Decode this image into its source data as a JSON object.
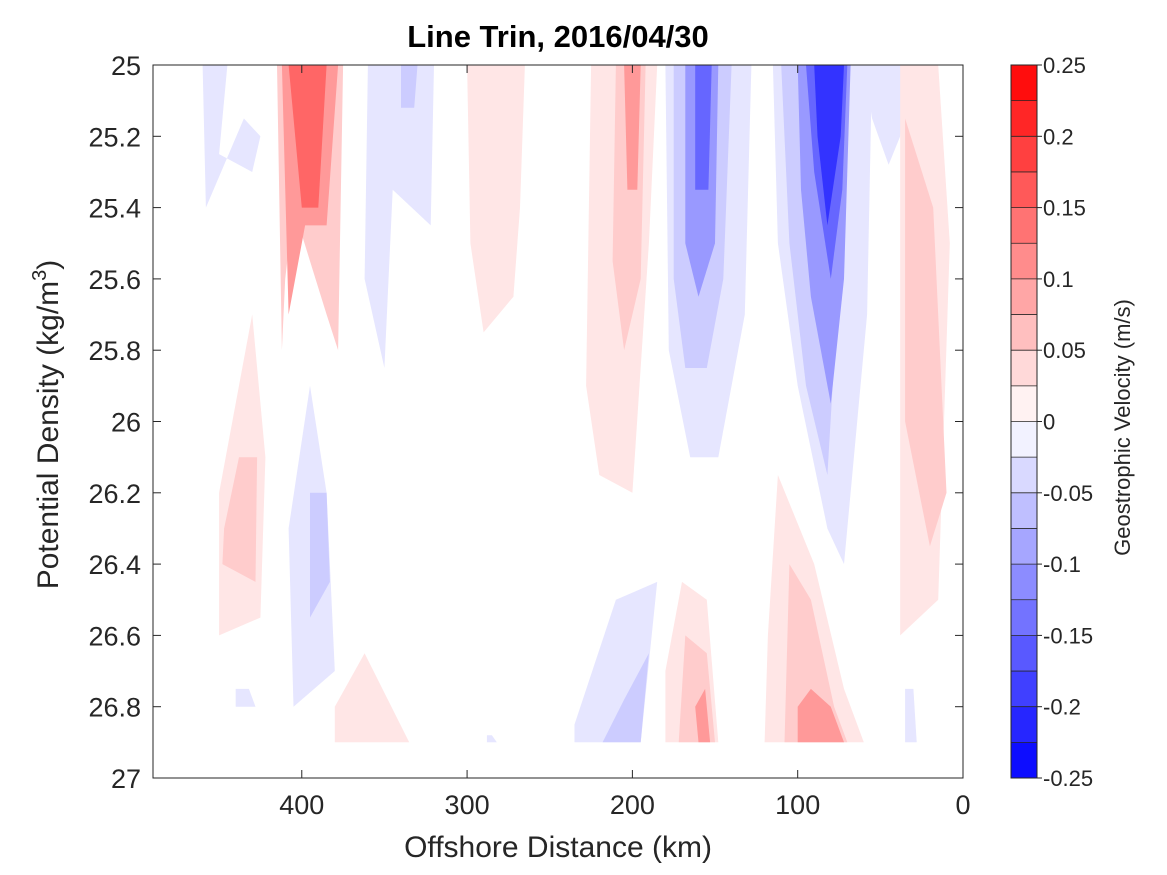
{
  "chart_data": {
    "type": "contour",
    "title": "Line Trin, 2016/04/30",
    "xlabel": "Offshore Distance (km)",
    "ylabel_main": "Potential Density (kg/m",
    "ylabel_sup": "3",
    "ylabel_tail": ")",
    "x_reversed": true,
    "y_reversed": true,
    "xlim": [
      490,
      0
    ],
    "ylim": [
      25,
      27
    ],
    "xticks": [
      400,
      300,
      200,
      100,
      0
    ],
    "yticks": [
      25,
      25.2,
      25.4,
      25.6,
      25.8,
      26,
      26.2,
      26.4,
      26.6,
      26.8,
      27
    ],
    "ytick_labels": [
      "25",
      "25.2",
      "25.4",
      "25.6",
      "25.8",
      "26",
      "26.2",
      "26.4",
      "26.6",
      "26.8",
      "27"
    ],
    "colorbar": {
      "label": "Geostrophic Velocity (m/s)",
      "range": [
        -0.25,
        0.25
      ],
      "levels": [
        -0.25,
        -0.225,
        -0.2,
        -0.175,
        -0.15,
        -0.125,
        -0.1,
        -0.075,
        -0.05,
        -0.025,
        0,
        0.025,
        0.05,
        0.075,
        0.1,
        0.125,
        0.15,
        0.175,
        0.2,
        0.225,
        0.25
      ],
      "ticks": [
        0.25,
        0.2,
        0.15,
        0.1,
        0.05,
        0,
        -0.05,
        -0.1,
        -0.15,
        -0.2,
        -0.25
      ],
      "tick_labels": [
        "0.25",
        "0.2",
        "0.15",
        "0.1",
        "0.05",
        "0",
        "-0.05",
        "-0.1",
        "-0.15",
        "-0.2",
        "-0.25"
      ],
      "colormap": "blue-white-red",
      "negative_color": "#0000ff",
      "positive_color": "#ff0000",
      "zero_color": "#ffffff"
    },
    "features": [
      {
        "x": [
          460,
          445,
          450,
          430,
          425,
          435,
          458
        ],
        "y": [
          25,
          25,
          25.25,
          25.3,
          25.2,
          25.15,
          25.4
        ],
        "v": -0.025
      },
      {
        "x": [
          415,
          375,
          378,
          385,
          395,
          405,
          410,
          412
        ],
        "y": [
          25,
          25,
          25.8,
          25.7,
          25.55,
          25.4,
          25.6,
          25.8
        ],
        "v": 0.05
      },
      {
        "x": [
          412,
          378,
          385,
          398,
          408
        ],
        "y": [
          25,
          25,
          25.45,
          25.45,
          25.7
        ],
        "v": 0.1
      },
      {
        "x": [
          408,
          385,
          390,
          400
        ],
        "y": [
          25,
          25,
          25.4,
          25.4
        ],
        "v": 0.15
      },
      {
        "x": [
          360,
          320,
          322,
          345,
          350,
          362
        ],
        "y": [
          25,
          25,
          25.45,
          25.35,
          25.85,
          25.6
        ],
        "v": -0.025
      },
      {
        "x": [
          340,
          330,
          332,
          340
        ],
        "y": [
          25,
          25,
          25.12,
          25.12
        ],
        "v": -0.05
      },
      {
        "x": [
          300,
          265,
          268,
          272,
          290,
          298
        ],
        "y": [
          25,
          25,
          25.4,
          25.65,
          25.75,
          25.5
        ],
        "v": 0.025
      },
      {
        "x": [
          225,
          185,
          190,
          200,
          220,
          228
        ],
        "y": [
          25,
          25,
          25.5,
          26.2,
          26.15,
          25.9
        ],
        "v": 0.025
      },
      {
        "x": [
          210,
          192,
          195,
          205,
          212
        ],
        "y": [
          25,
          25,
          25.6,
          25.8,
          25.55
        ],
        "v": 0.05
      },
      {
        "x": [
          205,
          195,
          197,
          203
        ],
        "y": [
          25,
          25,
          25.35,
          25.35
        ],
        "v": 0.1
      },
      {
        "x": [
          180,
          128,
          132,
          148,
          165,
          178
        ],
        "y": [
          25,
          25,
          25.7,
          26.1,
          26.1,
          25.8
        ],
        "v": -0.025
      },
      {
        "x": [
          175,
          140,
          145,
          155,
          168,
          175
        ],
        "y": [
          25,
          25,
          25.6,
          25.85,
          25.85,
          25.6
        ],
        "v": -0.05
      },
      {
        "x": [
          168,
          148,
          150,
          160,
          168
        ],
        "y": [
          25,
          25,
          25.5,
          25.65,
          25.5
        ],
        "v": -0.1
      },
      {
        "x": [
          162,
          152,
          154,
          162
        ],
        "y": [
          25,
          25,
          25.35,
          25.35
        ],
        "v": -0.15
      },
      {
        "x": [
          115,
          55,
          58,
          72,
          82,
          100,
          112
        ],
        "y": [
          25,
          25,
          25.7,
          26.4,
          26.3,
          25.9,
          25.5
        ],
        "v": -0.025
      },
      {
        "x": [
          110,
          70,
          75,
          82,
          95,
          105
        ],
        "y": [
          25,
          25,
          25.6,
          26.15,
          25.9,
          25.5
        ],
        "v": -0.05
      },
      {
        "x": [
          100,
          68,
          72,
          80,
          92,
          98
        ],
        "y": [
          25,
          25,
          25.6,
          25.95,
          25.65,
          25.35
        ],
        "v": -0.1
      },
      {
        "x": [
          95,
          70,
          73,
          80,
          90
        ],
        "y": [
          25,
          25,
          25.35,
          25.6,
          25.3
        ],
        "v": -0.15
      },
      {
        "x": [
          90,
          72,
          74,
          82,
          88
        ],
        "y": [
          25,
          25,
          25.2,
          25.45,
          25.2
        ],
        "v": -0.2
      },
      {
        "x": [
          60,
          35,
          38,
          45,
          55
        ],
        "y": [
          25,
          25,
          25.2,
          25.28,
          25.15
        ],
        "v": -0.025
      },
      {
        "x": [
          38,
          15,
          8,
          15,
          38
        ],
        "y": [
          25,
          25,
          25.5,
          26.5,
          26.6
        ],
        "v": 0.025
      },
      {
        "x": [
          35,
          18,
          10,
          20,
          35
        ],
        "y": [
          25.15,
          25.4,
          26.2,
          26.35,
          26.0
        ],
        "v": 0.05
      },
      {
        "x": [
          450,
          425,
          422,
          430,
          450
        ],
        "y": [
          26.6,
          26.55,
          26.1,
          25.7,
          26.2
        ],
        "v": 0.025
      },
      {
        "x": [
          448,
          428,
          427,
          438,
          447
        ],
        "y": [
          26.4,
          26.45,
          26.1,
          26.1,
          26.3
        ],
        "v": 0.05
      },
      {
        "x": [
          405,
          380,
          385,
          395,
          408
        ],
        "y": [
          26.8,
          26.7,
          26.2,
          25.9,
          26.3
        ],
        "v": -0.025
      },
      {
        "x": [
          395,
          383,
          385,
          395
        ],
        "y": [
          26.55,
          26.45,
          26.2,
          26.2
        ],
        "v": -0.05
      },
      {
        "x": [
          440,
          428,
          432,
          440
        ],
        "y": [
          26.8,
          26.8,
          26.75,
          26.75
        ],
        "v": -0.025
      },
      {
        "x": [
          380,
          335,
          362,
          380
        ],
        "y": [
          26.9,
          26.9,
          26.65,
          26.8
        ],
        "v": 0.025
      },
      {
        "x": [
          288,
          282,
          285,
          288
        ],
        "y": [
          26.9,
          26.9,
          26.88,
          26.88
        ],
        "v": -0.025
      },
      {
        "x": [
          235,
          195,
          185,
          210,
          235
        ],
        "y": [
          26.9,
          26.9,
          26.45,
          26.5,
          26.85
        ],
        "v": -0.025
      },
      {
        "x": [
          218,
          195,
          190,
          205
        ],
        "y": [
          26.9,
          26.9,
          26.65,
          26.78
        ],
        "v": -0.05
      },
      {
        "x": [
          180,
          148,
          155,
          170,
          180
        ],
        "y": [
          26.9,
          26.9,
          26.5,
          26.45,
          26.7
        ],
        "v": 0.025
      },
      {
        "x": [
          172,
          150,
          155,
          168
        ],
        "y": [
          26.9,
          26.9,
          26.65,
          26.6
        ],
        "v": 0.05
      },
      {
        "x": [
          160,
          153,
          156,
          162
        ],
        "y": [
          26.9,
          26.9,
          26.75,
          26.8
        ],
        "v": 0.1
      },
      {
        "x": [
          120,
          60,
          72,
          90,
          112,
          118
        ],
        "y": [
          26.9,
          26.9,
          26.75,
          26.4,
          26.15,
          26.6
        ],
        "v": 0.025
      },
      {
        "x": [
          108,
          70,
          78,
          92,
          105
        ],
        "y": [
          26.9,
          26.9,
          26.8,
          26.5,
          26.4
        ],
        "v": 0.05
      },
      {
        "x": [
          100,
          72,
          80,
          92,
          100
        ],
        "y": [
          26.9,
          26.9,
          26.8,
          26.75,
          26.8
        ],
        "v": 0.1
      },
      {
        "x": [
          35,
          28,
          30,
          35
        ],
        "y": [
          26.9,
          26.9,
          26.75,
          26.75
        ],
        "v": -0.025
      }
    ]
  }
}
